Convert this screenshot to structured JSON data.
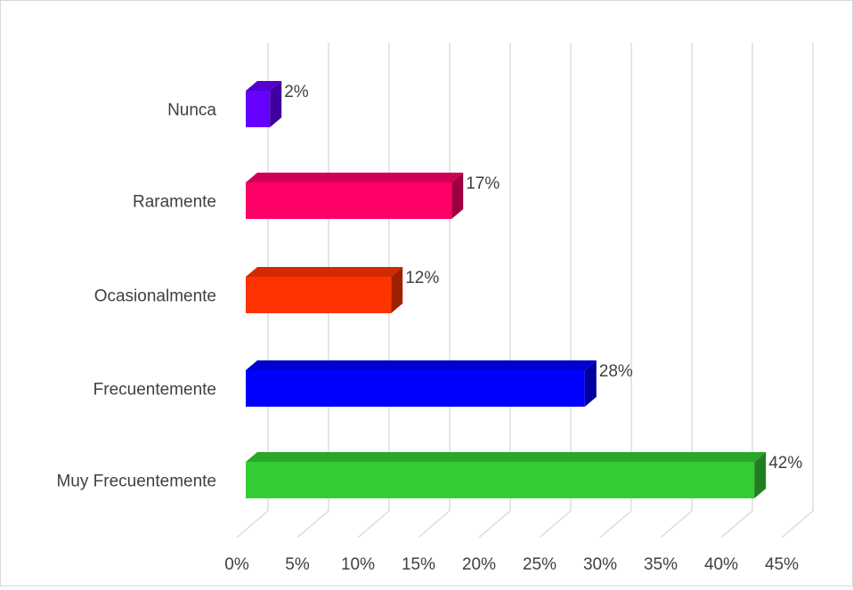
{
  "chart_data": {
    "type": "bar",
    "orientation": "horizontal",
    "style": "3d",
    "categories": [
      "Nunca",
      "Raramente",
      "Ocasionalmente",
      "Frecuentemente",
      "Muy Frecuentemente"
    ],
    "values": [
      2,
      17,
      12,
      28,
      42
    ],
    "data_labels": [
      "2%",
      "17%",
      "12%",
      "28%",
      "42%"
    ],
    "bar_colors": [
      "#6600ff",
      "#ff0066",
      "#ff3300",
      "#0000ff",
      "#33cc33"
    ],
    "x_ticks": [
      "0%",
      "5%",
      "10%",
      "15%",
      "20%",
      "25%",
      "30%",
      "35%",
      "40%",
      "45%"
    ],
    "xlim": [
      0,
      45
    ],
    "grid": true,
    "legend": "none",
    "title": ""
  }
}
